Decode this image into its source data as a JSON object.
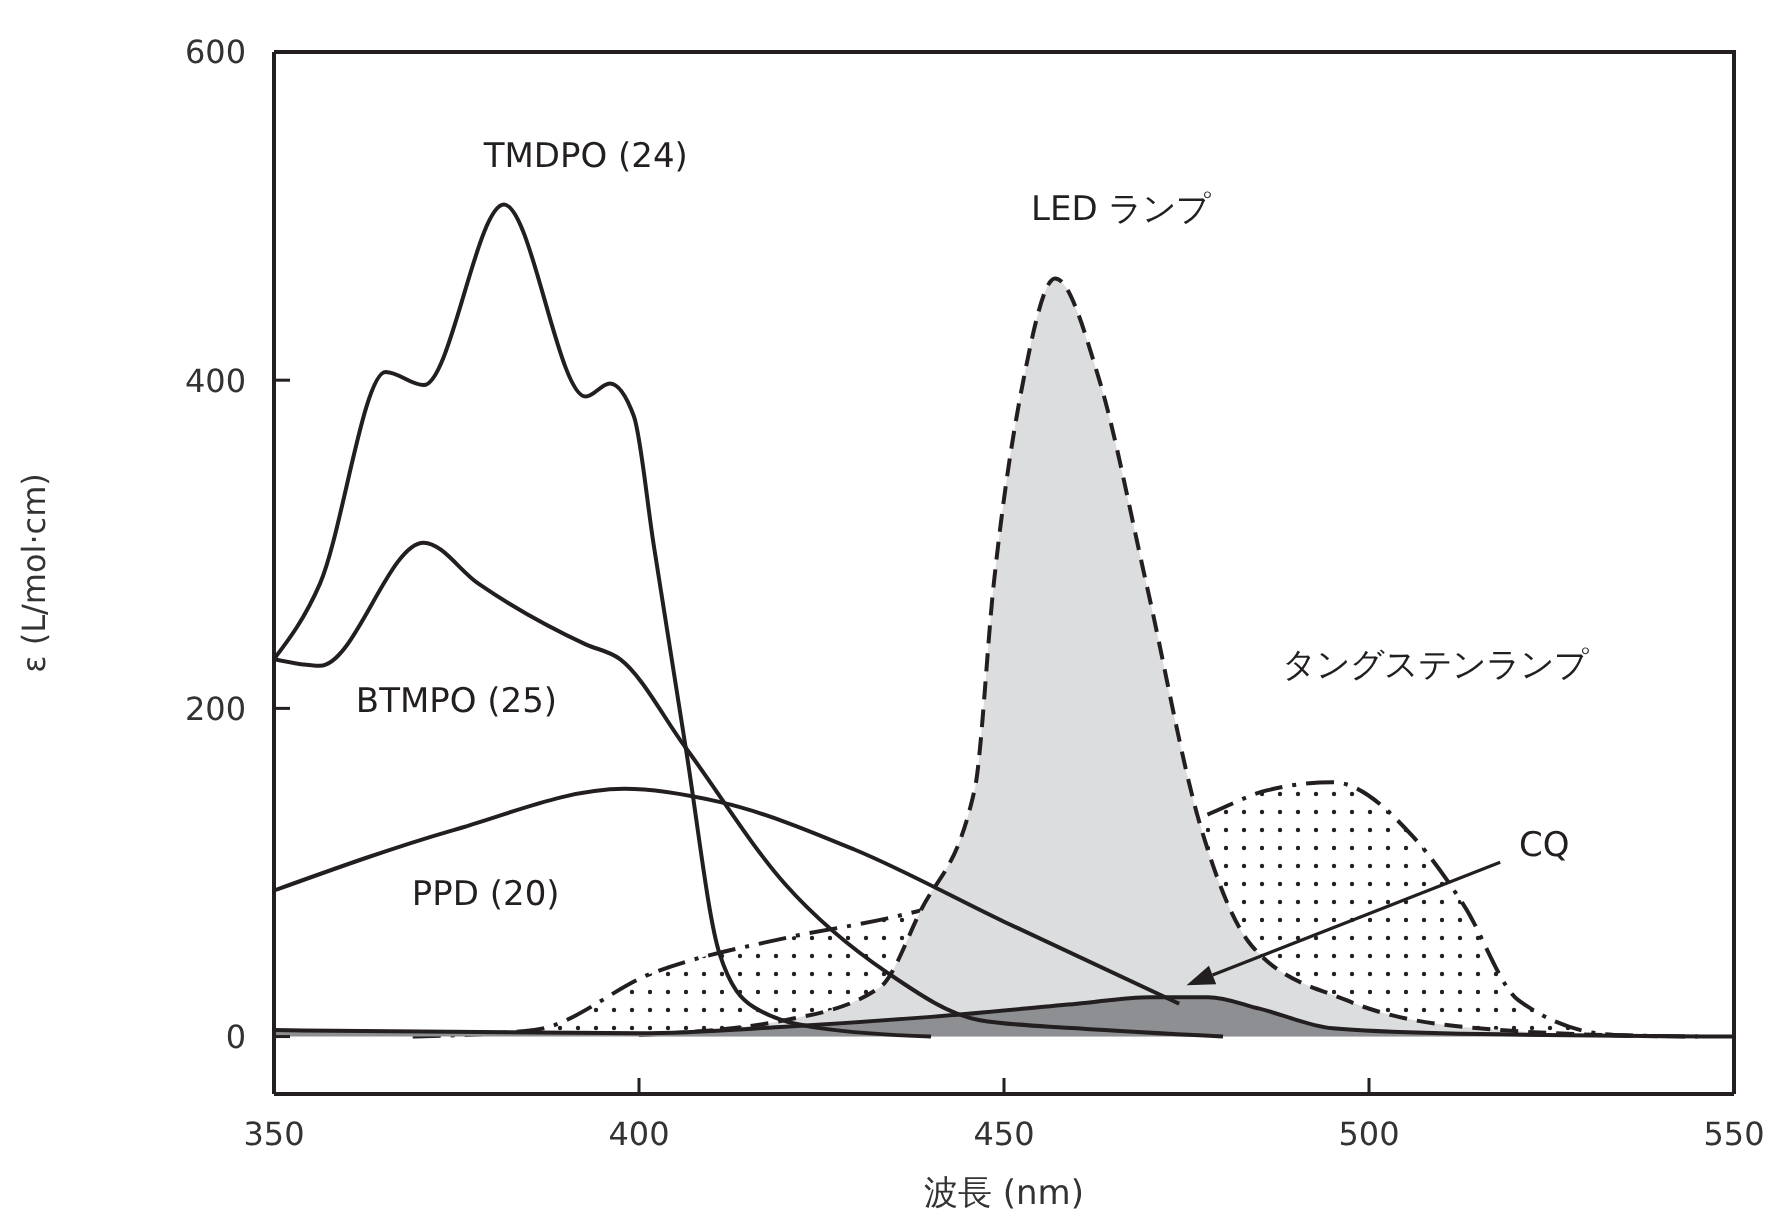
{
  "chart_data": {
    "type": "line",
    "xlabel": "波長 (nm)",
    "ylabel": "ε (L/mol·cm)",
    "xlim": [
      350,
      550
    ],
    "xticks": [
      350,
      400,
      450,
      500,
      550
    ],
    "ylim": [
      -35,
      600
    ],
    "yticks": [
      0,
      200,
      400,
      600
    ],
    "marker": "none",
    "series": [
      {
        "type": "area",
        "name": "タングステンランプ",
        "color": "#231f20",
        "line_style": "dashdot",
        "x": [
          369,
          385.6,
          402,
          420,
          434,
          477.7,
          486,
          495,
          506,
          513,
          520.5,
          533.6,
          545
        ],
        "values": [
          0,
          4,
          39,
          60,
          72,
          135,
          150,
          155,
          122,
          80,
          22,
          1,
          0
        ]
      },
      {
        "type": "area",
        "name": "LED ランプ",
        "color": "#dcdddf",
        "line_style": "dashed",
        "x": [
          400,
          420,
          433,
          438.5,
          446,
          448.6,
          452.7,
          457,
          463,
          469.5,
          476.8,
          484,
          497,
          515,
          541
        ],
        "values": [
          1,
          10,
          30,
          76,
          151,
          276,
          401,
          462,
          401,
          276,
          130,
          55,
          22,
          5,
          0
        ]
      },
      {
        "type": "area",
        "color": "#8e8f92",
        "line_style": "solid",
        "x": [
          350,
          400,
          420,
          440,
          460,
          470,
          478,
          485,
          495,
          510,
          550
        ],
        "values": [
          4,
          2,
          6,
          12,
          20,
          24,
          24,
          17,
          5,
          2,
          0
        ]
      },
      {
        "name": "TMDPO (24)",
        "color": "#231f20",
        "line_style": "solid",
        "x": [
          350,
          356.3,
          365.3,
          370.5,
          381.5,
          392.7,
          396,
          399.3,
          402,
          406.4,
          411,
          415.7,
          425,
          440
        ],
        "values": [
          230,
          276,
          405,
          397,
          507,
          390,
          398,
          378,
          300,
          176,
          51,
          18,
          5,
          0
        ]
      },
      {
        "name": "BTMPO (25)",
        "color": "#231f20",
        "line_style": "solid",
        "x": [
          350,
          356.3,
          370.5,
          378,
          392.7,
          397.4,
          406.4,
          420,
          434,
          446.7,
          460,
          480
        ],
        "values": [
          230,
          226,
          301,
          276,
          239,
          230,
          176,
          93,
          39,
          10,
          5,
          0
        ]
      },
      {
        "name": "PPD (20)",
        "color": "#231f20",
        "line_style": "solid",
        "x": [
          350,
          374.7,
          398,
          411,
          429.5,
          450,
          474
        ],
        "values": [
          89,
          126,
          151,
          143,
          114,
          70,
          20
        ]
      }
    ],
    "annotations": [
      "CQ"
    ]
  }
}
